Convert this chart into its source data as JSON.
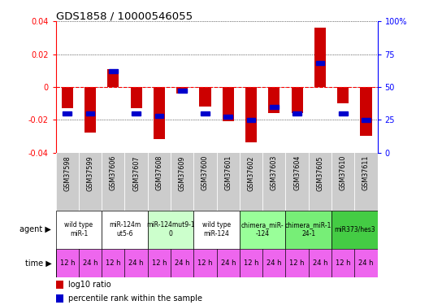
{
  "title": "GDS1858 / 10000546055",
  "samples": [
    "GSM37598",
    "GSM37599",
    "GSM37606",
    "GSM37607",
    "GSM37608",
    "GSM37609",
    "GSM37600",
    "GSM37601",
    "GSM37602",
    "GSM37603",
    "GSM37604",
    "GSM37605",
    "GSM37610",
    "GSM37611"
  ],
  "log10_ratio": [
    -0.013,
    -0.028,
    0.011,
    -0.013,
    -0.032,
    -0.004,
    -0.012,
    -0.021,
    -0.034,
    -0.016,
    -0.016,
    0.036,
    -0.01,
    -0.03
  ],
  "percentile_rank_pct": [
    30,
    30,
    62,
    30,
    28,
    47,
    30,
    27,
    25,
    35,
    30,
    68,
    30,
    25
  ],
  "ylim": [
    -0.04,
    0.04
  ],
  "yticks_left": [
    -0.04,
    -0.02,
    0,
    0.02,
    0.04
  ],
  "yticks_right": [
    0,
    25,
    50,
    75,
    100
  ],
  "agent_groups": [
    {
      "label": "wild type\nmiR-1",
      "start": 0,
      "end": 2,
      "color": "#ffffff"
    },
    {
      "label": "miR-124m\nut5-6",
      "start": 2,
      "end": 4,
      "color": "#ffffff"
    },
    {
      "label": "miR-124mut9-1\n0",
      "start": 4,
      "end": 6,
      "color": "#ccffcc"
    },
    {
      "label": "wild type\nmiR-124",
      "start": 6,
      "end": 8,
      "color": "#ffffff"
    },
    {
      "label": "chimera_miR-\n-124",
      "start": 8,
      "end": 10,
      "color": "#99ff99"
    },
    {
      "label": "chimera_miR-1\n24-1",
      "start": 10,
      "end": 12,
      "color": "#77ee77"
    },
    {
      "label": "miR373/hes3",
      "start": 12,
      "end": 14,
      "color": "#44cc44"
    }
  ],
  "time_labels": [
    "12 h",
    "24 h",
    "12 h",
    "24 h",
    "12 h",
    "24 h",
    "12 h",
    "24 h",
    "12 h",
    "24 h",
    "12 h",
    "24 h",
    "12 h",
    "24 h"
  ],
  "time_color": "#ee66ee",
  "bar_color_red": "#cc0000",
  "bar_color_blue": "#0000cc",
  "sample_band_color": "#cccccc",
  "bg_color": "#ffffff"
}
